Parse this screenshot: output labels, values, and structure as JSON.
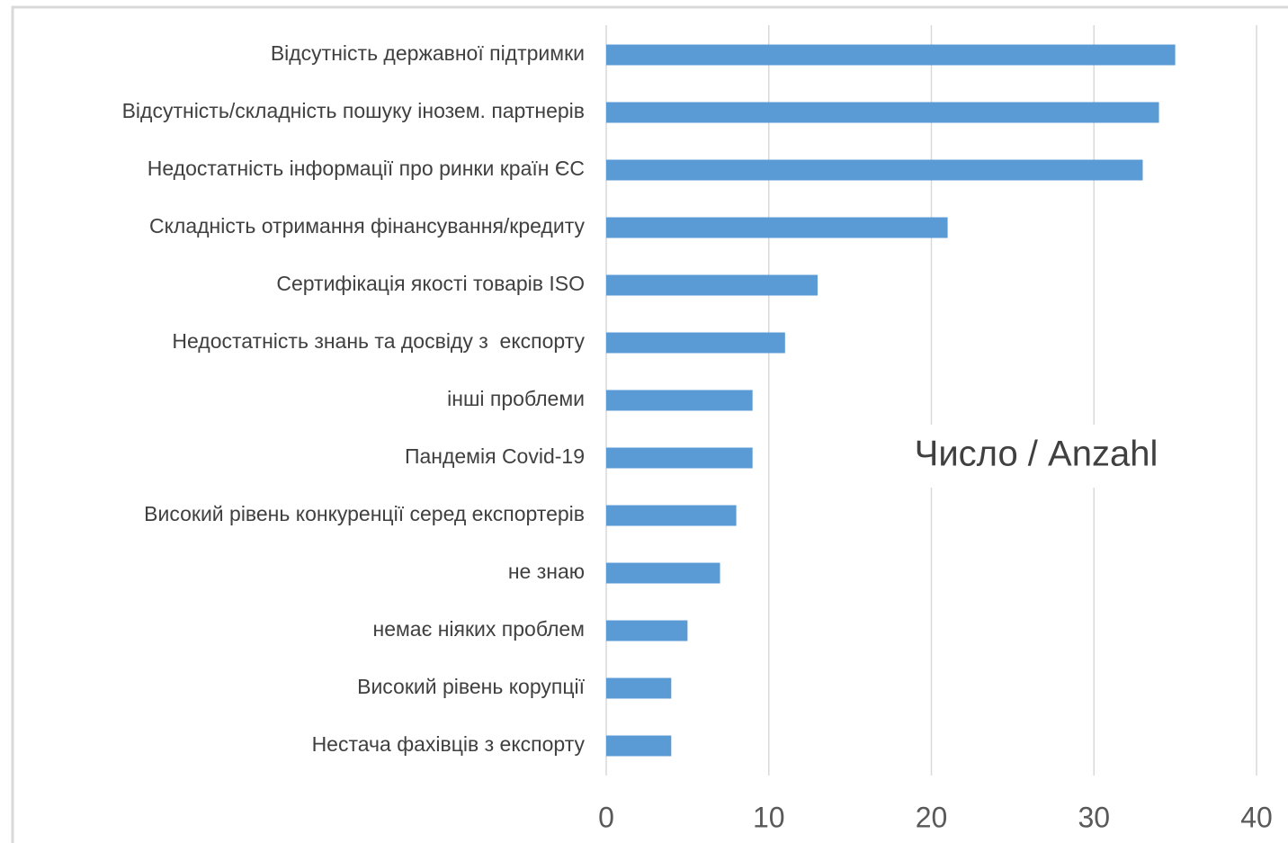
{
  "chart_data": {
    "type": "bar",
    "orientation": "horizontal",
    "categories": [
      "Відсутність державної підтримки",
      "Відсутність/складність пошуку інозем. партнерів",
      "Недостатність інформації про ринки країн ЄС",
      "Складність отримання фінансування/кредиту",
      "Сертифікація якості товарів ISO",
      "Недостатність знань та досвіду з  експорту",
      "інші проблеми",
      "Пандемія Covid-19",
      "Високий рівень конкуренції серед експортерів",
      "не знаю",
      "немає ніяких проблем",
      "Високий рівень корупції",
      "Нестача фахівців з експорту"
    ],
    "values": [
      35,
      34,
      33,
      21,
      13,
      11,
      9,
      9,
      8,
      7,
      5,
      4,
      4
    ],
    "color": "#5b9bd5",
    "xlim": [
      0,
      40
    ],
    "xticks": [
      0,
      10,
      20,
      30,
      40
    ],
    "grid": true,
    "annotation": "Число / Anzahl"
  }
}
